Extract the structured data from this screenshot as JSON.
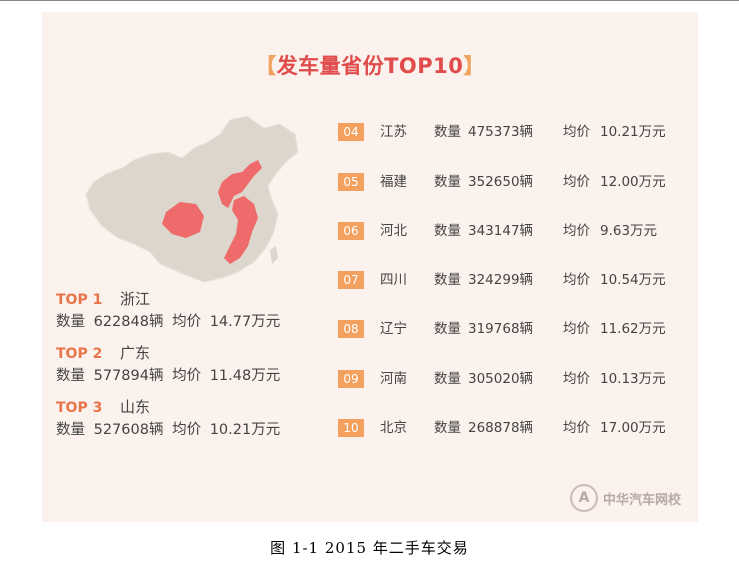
{
  "infographic": {
    "title_bracket_left": "【",
    "title": "发车量省份TOP10",
    "title_bracket_right": "】",
    "top3": [
      {
        "rank": "TOP 1",
        "province": "浙江",
        "count_label": "数量",
        "count": "622848辆",
        "price_label": "均价",
        "price": "14.77万元"
      },
      {
        "rank": "TOP 2",
        "province": "广东",
        "count_label": "数量",
        "count": "577894辆",
        "price_label": "均价",
        "price": "11.48万元"
      },
      {
        "rank": "TOP 3",
        "province": "山东",
        "count_label": "数量",
        "count": "527608辆",
        "price_label": "均价",
        "price": "10.21万元"
      }
    ],
    "ranks": [
      {
        "rank": "04",
        "province": "江苏",
        "count_label": "数量",
        "count": "475373辆",
        "price_label": "均价",
        "price": "10.21万元"
      },
      {
        "rank": "05",
        "province": "福建",
        "count_label": "数量",
        "count": "352650辆",
        "price_label": "均价",
        "price": "12.00万元"
      },
      {
        "rank": "06",
        "province": "河北",
        "count_label": "数量",
        "count": "343147辆",
        "price_label": "均价",
        "price": "9.63万元"
      },
      {
        "rank": "07",
        "province": "四川",
        "count_label": "数量",
        "count": "324299辆",
        "price_label": "均价",
        "price": "10.54万元"
      },
      {
        "rank": "08",
        "province": "辽宁",
        "count_label": "数量",
        "count": "319768辆",
        "price_label": "均价",
        "price": "11.62万元"
      },
      {
        "rank": "09",
        "province": "河南",
        "count_label": "数量",
        "count": "305020辆",
        "price_label": "均价",
        "price": "10.13万元"
      },
      {
        "rank": "10",
        "province": "北京",
        "count_label": "数量",
        "count": "268878辆",
        "price_label": "均价",
        "price": "17.00万元"
      }
    ],
    "logo_mark": "A",
    "logo_text": "中华汽车网校",
    "colors": {
      "highlight": "#ef6a6a",
      "land": "#ddd6cc",
      "accent": "#f4a05e",
      "title": "#e04b4b"
    }
  },
  "caption": "图 1-1 2015 年二手车交易"
}
